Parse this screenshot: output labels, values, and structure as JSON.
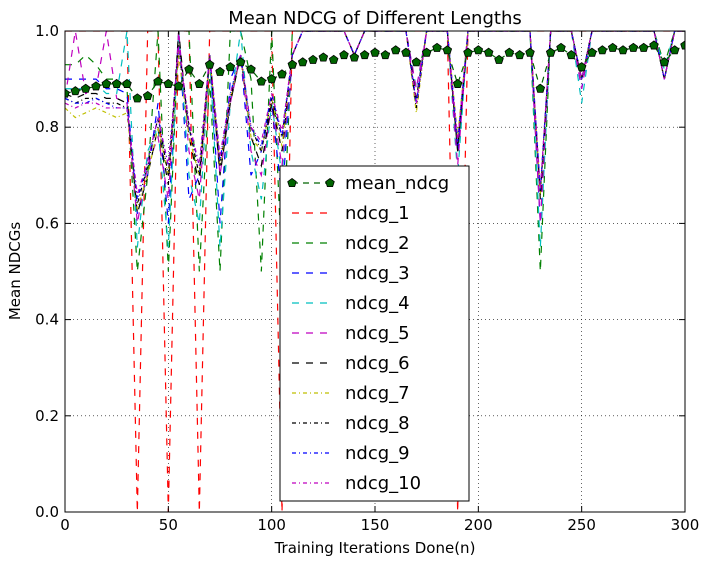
{
  "chart_data": {
    "type": "line",
    "title": "Mean NDCG of Different Lengths",
    "xlabel": "Training Iterations Done(n)",
    "ylabel": "Mean NDCGs",
    "xlim": [
      0,
      300
    ],
    "ylim": [
      0.0,
      1.0
    ],
    "xticks": [
      "0",
      "50",
      "100",
      "150",
      "200",
      "250",
      "300"
    ],
    "yticks": [
      "0.0",
      "0.2",
      "0.4",
      "0.6",
      "0.8",
      "1.0"
    ],
    "grid": true,
    "legend_position": "center",
    "x": [
      0,
      5,
      10,
      15,
      20,
      25,
      30,
      35,
      40,
      45,
      50,
      55,
      60,
      65,
      70,
      75,
      80,
      85,
      90,
      95,
      100,
      105,
      110,
      115,
      120,
      125,
      130,
      135,
      140,
      145,
      150,
      155,
      160,
      165,
      170,
      175,
      180,
      185,
      190,
      195,
      200,
      205,
      210,
      215,
      220,
      225,
      230,
      235,
      240,
      245,
      250,
      255,
      260,
      265,
      270,
      275,
      280,
      285,
      290,
      295,
      300
    ],
    "series": [
      {
        "name": "mean_ndcg",
        "color": "#006400",
        "dash": "6,5",
        "marker": "pentagon",
        "values": [
          0.87,
          0.875,
          0.88,
          0.885,
          0.89,
          0.89,
          0.89,
          0.86,
          0.865,
          0.895,
          0.89,
          0.885,
          0.92,
          0.89,
          0.93,
          0.915,
          0.925,
          0.935,
          0.92,
          0.895,
          0.9,
          0.91,
          0.93,
          0.935,
          0.94,
          0.945,
          0.94,
          0.95,
          0.945,
          0.95,
          0.955,
          0.95,
          0.96,
          0.955,
          0.935,
          0.955,
          0.965,
          0.96,
          0.89,
          0.955,
          0.96,
          0.955,
          0.94,
          0.955,
          0.95,
          0.955,
          0.88,
          0.955,
          0.965,
          0.95,
          0.925,
          0.955,
          0.96,
          0.965,
          0.96,
          0.965,
          0.965,
          0.97,
          0.935,
          0.96,
          0.97
        ]
      },
      {
        "name": "ndcg_1",
        "color": "#ff0000",
        "dash": "7,7",
        "values": [
          1,
          1,
          1,
          1,
          1,
          1,
          1,
          0.0,
          1,
          1,
          0.0,
          1,
          1,
          0.0,
          1,
          1,
          1,
          1,
          1,
          1,
          1,
          0.0,
          1,
          1,
          1,
          1,
          1,
          1,
          1,
          1,
          1,
          1,
          1,
          1,
          1,
          1,
          1,
          1,
          0.0,
          1,
          1,
          1,
          1,
          1,
          1,
          1,
          1,
          1,
          1,
          1,
          1,
          1,
          1,
          1,
          1,
          1,
          1,
          1,
          1,
          1,
          1
        ]
      },
      {
        "name": "ndcg_2",
        "color": "#008000",
        "dash": "7,7",
        "values": [
          0.93,
          0.93,
          0.95,
          0.93,
          0.9,
          0.9,
          0.88,
          0.5,
          0.7,
          1.0,
          0.5,
          1.0,
          1.0,
          0.5,
          0.9,
          0.5,
          1.0,
          1.0,
          0.9,
          0.5,
          1.0,
          0.5,
          1.0,
          1.0,
          1.0,
          1.0,
          1.0,
          1.0,
          1.0,
          1.0,
          1.0,
          1.0,
          1.0,
          1.0,
          1.0,
          1.0,
          1.0,
          1.0,
          0.75,
          1.0,
          1.0,
          1.0,
          1.0,
          1.0,
          1.0,
          1.0,
          0.5,
          1.0,
          1.0,
          1.0,
          0.9,
          1.0,
          1.0,
          1.0,
          1.0,
          1.0,
          1.0,
          1.0,
          0.93,
          1.0,
          1.0
        ]
      },
      {
        "name": "ndcg_3",
        "color": "#0000ff",
        "dash": "7,7",
        "values": [
          0.9,
          0.9,
          0.9,
          0.9,
          0.88,
          0.88,
          0.87,
          0.62,
          0.7,
          0.85,
          0.6,
          1.0,
          0.65,
          0.7,
          0.95,
          0.6,
          0.9,
          0.95,
          0.7,
          0.75,
          0.85,
          0.65,
          0.95,
          1.0,
          1.0,
          1.0,
          1.0,
          1.0,
          0.95,
          1.0,
          1.0,
          1.0,
          1.0,
          1.0,
          0.85,
          1.0,
          1.0,
          1.0,
          0.75,
          1.0,
          1.0,
          1.0,
          1.0,
          1.0,
          1.0,
          1.0,
          0.6,
          1.0,
          1.0,
          1.0,
          0.88,
          1.0,
          1.0,
          1.0,
          1.0,
          1.0,
          1.0,
          1.0,
          0.9,
          1.0,
          1.0
        ]
      },
      {
        "name": "ndcg_4",
        "color": "#00bfbf",
        "dash": "7,7",
        "values": [
          0.88,
          0.88,
          0.88,
          0.89,
          0.87,
          0.87,
          1.0,
          0.55,
          0.75,
          0.8,
          0.55,
          1.0,
          0.7,
          0.6,
          0.95,
          0.55,
          0.85,
          1.0,
          0.75,
          0.65,
          0.85,
          0.7,
          0.95,
          1.0,
          1.0,
          1.0,
          1.0,
          1.0,
          0.95,
          1.0,
          1.0,
          1.0,
          1.0,
          1.0,
          0.88,
          1.0,
          1.0,
          1.0,
          0.7,
          1.0,
          1.0,
          1.0,
          1.0,
          1.0,
          1.0,
          1.0,
          0.55,
          1.0,
          1.0,
          1.0,
          0.85,
          1.0,
          1.0,
          1.0,
          1.0,
          1.0,
          1.0,
          1.0,
          0.92,
          1.0,
          1.0
        ]
      },
      {
        "name": "ndcg_5",
        "color": "#bf00bf",
        "dash": "7,7",
        "values": [
          0.86,
          1.0,
          0.87,
          0.88,
          1.0,
          0.86,
          0.85,
          0.6,
          0.72,
          0.78,
          0.65,
          1.0,
          0.75,
          0.65,
          0.95,
          0.7,
          0.85,
          0.95,
          0.75,
          0.7,
          0.85,
          0.72,
          0.95,
          1.0,
          1.0,
          1.0,
          1.0,
          1.0,
          0.95,
          1.0,
          1.0,
          1.0,
          1.0,
          1.0,
          0.88,
          1.0,
          1.0,
          1.0,
          0.72,
          1.0,
          1.0,
          1.0,
          1.0,
          1.0,
          1.0,
          1.0,
          0.6,
          1.0,
          1.0,
          1.0,
          0.88,
          1.0,
          1.0,
          1.0,
          1.0,
          1.0,
          1.0,
          1.0,
          0.9,
          1.0,
          1.0
        ]
      },
      {
        "name": "ndcg_6",
        "color": "#000000",
        "dash": "7,7",
        "values": [
          0.87,
          0.86,
          0.87,
          0.87,
          0.86,
          0.86,
          0.85,
          0.62,
          0.7,
          0.8,
          0.68,
          1.0,
          0.78,
          0.68,
          0.95,
          0.7,
          0.85,
          0.95,
          0.78,
          0.72,
          0.85,
          0.75,
          0.95,
          1.0,
          1.0,
          1.0,
          1.0,
          1.0,
          0.95,
          1.0,
          1.0,
          1.0,
          1.0,
          1.0,
          0.86,
          1.0,
          1.0,
          1.0,
          0.75,
          1.0,
          1.0,
          1.0,
          1.0,
          1.0,
          1.0,
          1.0,
          0.65,
          1.0,
          1.0,
          1.0,
          0.9,
          1.0,
          1.0,
          1.0,
          1.0,
          1.0,
          1.0,
          1.0,
          0.9,
          1.0,
          1.0
        ]
      },
      {
        "name": "ndcg_7",
        "color": "#bfbf00",
        "dash": "4,3,1,3",
        "values": [
          0.84,
          0.82,
          0.83,
          0.84,
          0.83,
          0.82,
          0.83,
          0.63,
          0.7,
          0.8,
          0.7,
          0.95,
          0.78,
          0.7,
          0.95,
          0.72,
          0.86,
          0.95,
          0.78,
          0.75,
          0.86,
          0.76,
          0.95,
          1.0,
          1.0,
          1.0,
          1.0,
          1.0,
          0.95,
          1.0,
          1.0,
          1.0,
          1.0,
          1.0,
          0.83,
          1.0,
          1.0,
          1.0,
          0.78,
          1.0,
          1.0,
          1.0,
          1.0,
          1.0,
          1.0,
          1.0,
          0.66,
          1.0,
          1.0,
          1.0,
          0.9,
          1.0,
          1.0,
          1.0,
          1.0,
          1.0,
          1.0,
          1.0,
          0.9,
          1.0,
          1.0
        ]
      },
      {
        "name": "ndcg_8",
        "color": "#000000",
        "dash": "4,3,1,3",
        "values": [
          0.86,
          0.85,
          0.86,
          0.86,
          0.85,
          0.85,
          0.84,
          0.64,
          0.72,
          0.82,
          0.7,
          0.97,
          0.8,
          0.7,
          0.95,
          0.72,
          0.86,
          0.95,
          0.8,
          0.75,
          0.86,
          0.78,
          0.95,
          1.0,
          1.0,
          1.0,
          1.0,
          1.0,
          0.95,
          1.0,
          1.0,
          1.0,
          1.0,
          1.0,
          0.84,
          1.0,
          1.0,
          1.0,
          0.76,
          1.0,
          1.0,
          1.0,
          1.0,
          1.0,
          1.0,
          1.0,
          0.66,
          1.0,
          1.0,
          1.0,
          0.9,
          1.0,
          1.0,
          1.0,
          1.0,
          1.0,
          1.0,
          1.0,
          0.9,
          1.0,
          1.0
        ]
      },
      {
        "name": "ndcg_9",
        "color": "#0000ff",
        "dash": "4,3,1,3",
        "values": [
          0.86,
          0.85,
          0.85,
          0.86,
          0.85,
          0.84,
          0.84,
          0.65,
          0.73,
          0.82,
          0.72,
          0.97,
          0.8,
          0.72,
          0.95,
          0.73,
          0.87,
          0.95,
          0.8,
          0.76,
          0.87,
          0.78,
          0.95,
          1.0,
          1.0,
          1.0,
          1.0,
          1.0,
          0.95,
          1.0,
          1.0,
          1.0,
          1.0,
          1.0,
          0.85,
          1.0,
          1.0,
          1.0,
          0.77,
          1.0,
          1.0,
          1.0,
          1.0,
          1.0,
          1.0,
          1.0,
          0.67,
          1.0,
          1.0,
          1.0,
          0.9,
          1.0,
          1.0,
          1.0,
          1.0,
          1.0,
          1.0,
          1.0,
          0.9,
          1.0,
          1.0
        ]
      },
      {
        "name": "ndcg_10",
        "color": "#bf00bf",
        "dash": "4,3,1,3",
        "values": [
          0.85,
          0.84,
          0.85,
          0.85,
          0.84,
          0.84,
          0.84,
          0.66,
          0.73,
          0.82,
          0.72,
          0.97,
          0.81,
          0.72,
          0.95,
          0.74,
          0.87,
          0.95,
          0.8,
          0.77,
          0.87,
          0.79,
          0.95,
          1.0,
          1.0,
          1.0,
          1.0,
          1.0,
          0.95,
          1.0,
          1.0,
          1.0,
          1.0,
          1.0,
          0.85,
          1.0,
          1.0,
          1.0,
          0.77,
          1.0,
          1.0,
          1.0,
          1.0,
          1.0,
          1.0,
          1.0,
          0.67,
          1.0,
          1.0,
          1.0,
          0.9,
          1.0,
          1.0,
          1.0,
          1.0,
          1.0,
          1.0,
          1.0,
          0.9,
          1.0,
          1.0
        ]
      }
    ]
  }
}
